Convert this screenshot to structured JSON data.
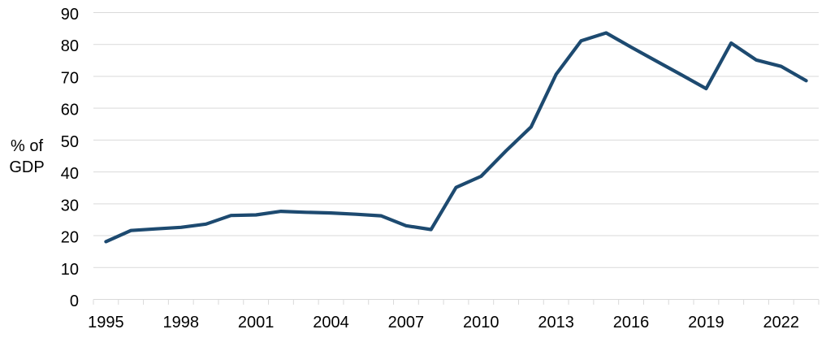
{
  "chart_data": {
    "type": "line",
    "title": "",
    "xlabel": "",
    "ylabel": "% of GDP",
    "ylabel_lines": [
      "% of",
      "GDP"
    ],
    "ylim": [
      0,
      90
    ],
    "ytick_step": 10,
    "yticks": [
      0,
      10,
      20,
      30,
      40,
      50,
      60,
      70,
      80,
      90
    ],
    "xticks_labeled": [
      1995,
      1998,
      2001,
      2004,
      2007,
      2010,
      2013,
      2016,
      2019,
      2022
    ],
    "grid": "horizontal",
    "legend_position": "none",
    "x": [
      1995,
      1996,
      1997,
      1998,
      1999,
      2000,
      2001,
      2002,
      2003,
      2004,
      2005,
      2006,
      2007,
      2008,
      2009,
      2010,
      2011,
      2012,
      2013,
      2014,
      2015,
      2016,
      2017,
      2018,
      2019,
      2020,
      2021,
      2022,
      2023
    ],
    "values": [
      18,
      21.5,
      22,
      22.5,
      23.5,
      26.2,
      26.4,
      27.5,
      27.2,
      27,
      26.6,
      26.1,
      23,
      21.8,
      35,
      38.5,
      46.5,
      54,
      70.5,
      81,
      83.5,
      79,
      74.7,
      70.4,
      66,
      80.3,
      75,
      73,
      68.5
    ],
    "colors": {
      "line": "#1D4A70",
      "grid": "#D9D9D9",
      "axis": "#D9D9D9",
      "text": "#000000",
      "background": "#FFFFFF"
    }
  }
}
